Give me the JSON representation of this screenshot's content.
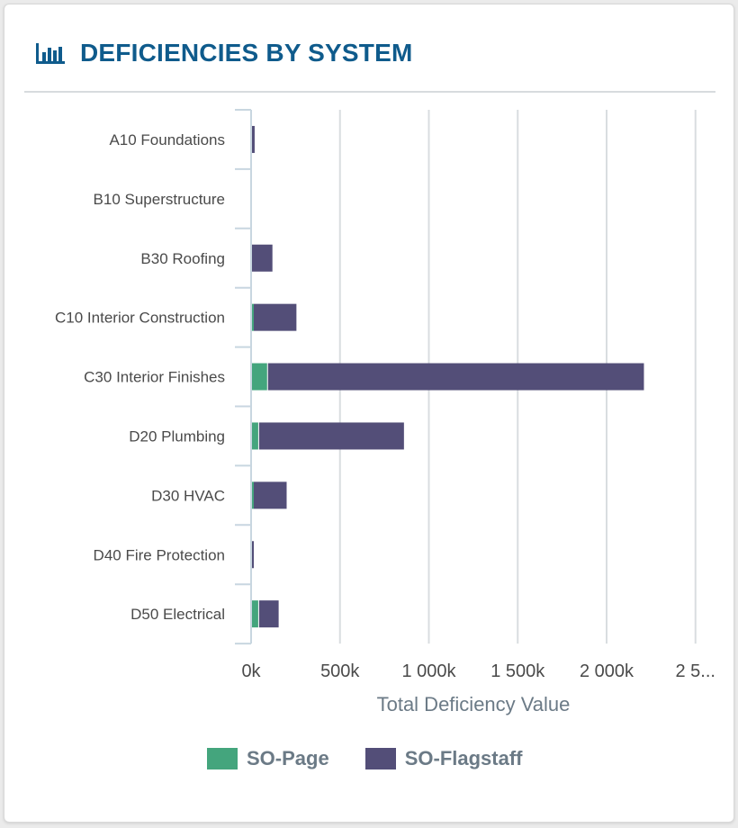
{
  "header": {
    "title": "DEFICIENCIES BY SYSTEM",
    "icon": "bar-chart-icon"
  },
  "chart_data": {
    "type": "bar",
    "orientation": "horizontal",
    "stacked": true,
    "categories": [
      "A10 Foundations",
      "B10 Superstructure",
      "B30 Roofing",
      "C10 Interior Construction",
      "C30 Interior Finishes",
      "D20 Plumbing",
      "D30 HVAC",
      "D40 Fire Protection",
      "D50 Electrical"
    ],
    "series": [
      {
        "name": "SO-Page",
        "color": "#44a57d",
        "values": [
          0,
          0,
          0,
          10000,
          90000,
          40000,
          10000,
          0,
          40000
        ]
      },
      {
        "name": "SO-Flagstaff",
        "color": "#534e78",
        "values": [
          20000,
          0,
          120000,
          245000,
          2120000,
          820000,
          190000,
          10000,
          115000
        ]
      }
    ],
    "xlabel": "Total Deficiency Value",
    "ylabel": "",
    "xlim": [
      0,
      2500000
    ],
    "xticks": [
      "0k",
      "500k",
      "1 000k",
      "1 500k",
      "2 000k",
      "2 5..."
    ],
    "grid": true,
    "legend": "bottom"
  },
  "colors": {
    "title": "#0f5b8c",
    "axis_text": "#4a4a4a",
    "gridline": "#d9dde0",
    "axis_line": "#c8d6e0"
  }
}
